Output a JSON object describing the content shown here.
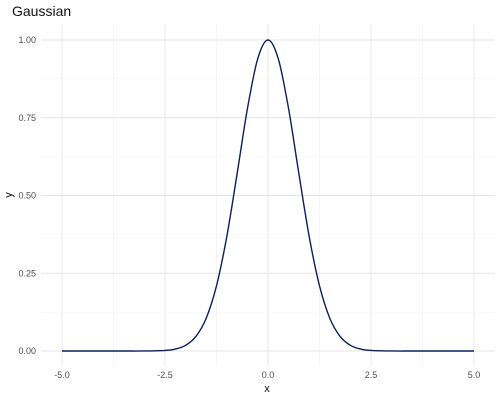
{
  "chart_data": {
    "type": "line",
    "title": "Gaussian",
    "xlabel": "x",
    "ylabel": "y",
    "xlim": [
      -5.0,
      5.0
    ],
    "ylim": [
      0.0,
      1.0
    ],
    "x_ticks": [
      -5.0,
      -2.5,
      0.0,
      2.5,
      5.0
    ],
    "x_tick_labels": [
      "-5.0",
      "-2.5",
      "0.0",
      "2.5",
      "5.0"
    ],
    "y_ticks": [
      0.0,
      0.25,
      0.5,
      0.75,
      1.0
    ],
    "y_tick_labels": [
      "0.00",
      "0.25",
      "0.50",
      "0.75",
      "1.00"
    ],
    "grid": true,
    "legend": "none",
    "line_color": "#0a1f5c",
    "series": [
      {
        "x": [
          -5.0,
          -4.5,
          -4.0,
          -3.5,
          -3.0,
          -2.5,
          -2.25,
          -2.0,
          -1.75,
          -1.5,
          -1.25,
          -1.0,
          -0.75,
          -0.5,
          -0.25,
          0.0,
          0.25,
          0.5,
          0.75,
          1.0,
          1.25,
          1.5,
          1.75,
          2.0,
          2.25,
          2.5,
          3.0,
          3.5,
          4.0,
          4.5,
          5.0
        ],
        "y": [
          0.0,
          0.0,
          0.0,
          0.0,
          0.0001,
          0.0019,
          0.0063,
          0.0183,
          0.0468,
          0.1054,
          0.2096,
          0.3679,
          0.5698,
          0.7788,
          0.9394,
          1.0,
          0.9394,
          0.7788,
          0.5698,
          0.3679,
          0.2096,
          0.1054,
          0.0468,
          0.0183,
          0.0063,
          0.0019,
          0.0001,
          0.0,
          0.0,
          0.0,
          0.0
        ]
      }
    ]
  }
}
